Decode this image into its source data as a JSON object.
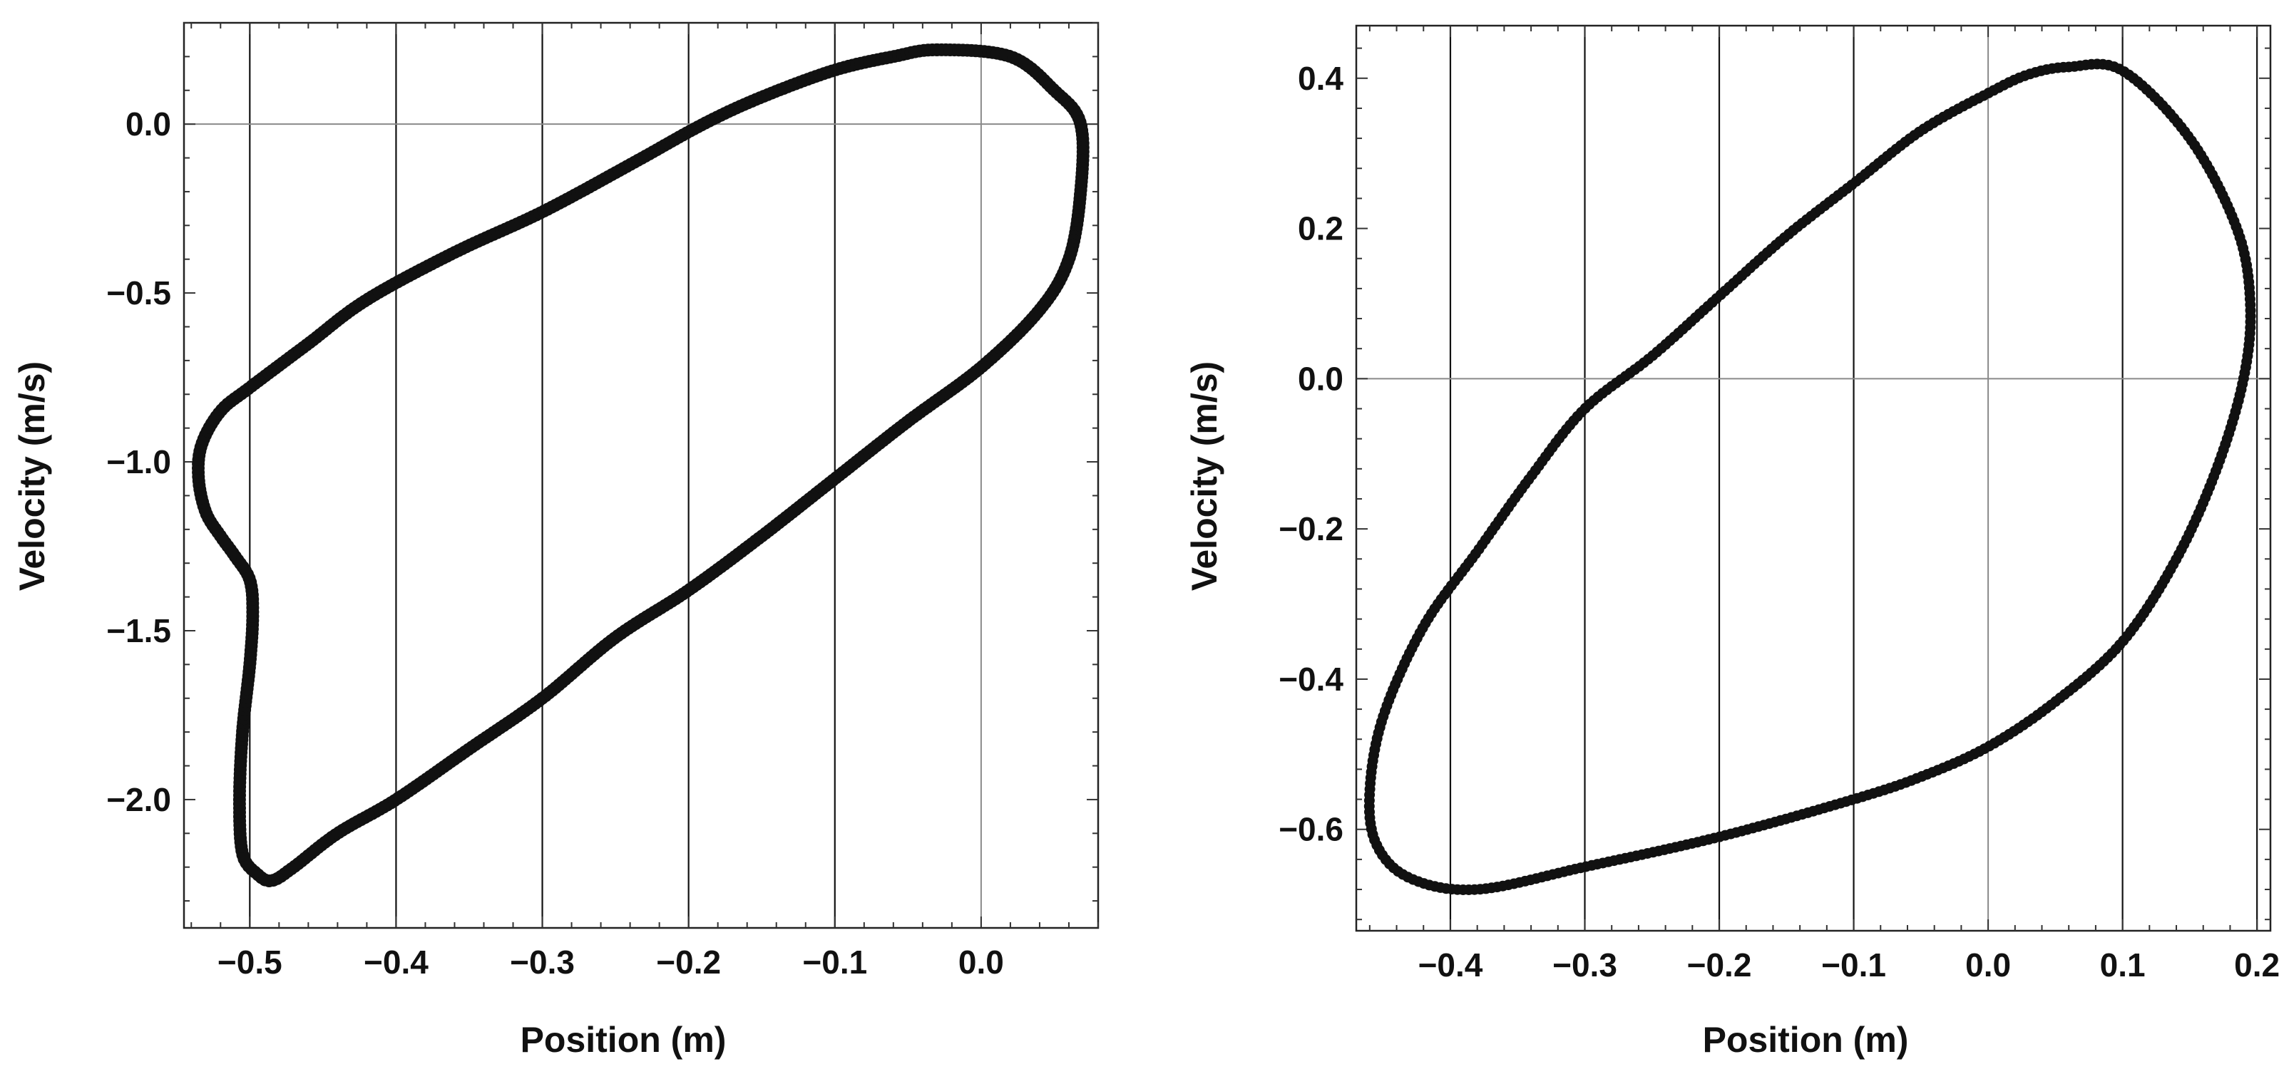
{
  "chart_data": [
    {
      "type": "scatter",
      "title": "",
      "xlabel": "Position (m)",
      "ylabel": "Velocity (m/s)",
      "xlim": [
        -0.545,
        0.08
      ],
      "ylim": [
        -2.38,
        0.3
      ],
      "xticks": [
        -0.5,
        -0.4,
        -0.3,
        -0.2,
        -0.1,
        0.0
      ],
      "xtick_labels": [
        "−0.5",
        "−0.4",
        "−0.3",
        "−0.2",
        "−0.1",
        "0.0"
      ],
      "yticks": [
        0.0,
        -0.5,
        -1.0,
        -1.5,
        -2.0
      ],
      "ytick_labels": [
        "0.0",
        "−0.5",
        "−1.0",
        "−1.5",
        "−2.0"
      ],
      "grid": "vertical",
      "marker_color": "#111111",
      "series": [
        {
          "closed": true,
          "x": [
            -0.03,
            0.02,
            0.05,
            0.068,
            0.068,
            0.06,
            0.04,
            0.0,
            -0.05,
            -0.1,
            -0.15,
            -0.2,
            -0.25,
            -0.3,
            -0.35,
            -0.4,
            -0.44,
            -0.47,
            -0.485,
            -0.495,
            -0.505,
            -0.507,
            -0.505,
            -0.5,
            -0.498,
            -0.5,
            -0.51,
            -0.52,
            -0.53,
            -0.535,
            -0.533,
            -0.52,
            -0.5,
            -0.46,
            -0.42,
            -0.36,
            -0.3,
            -0.24,
            -0.19,
            -0.15,
            -0.1,
            -0.06,
            -0.03
          ],
          "y": [
            0.22,
            0.2,
            0.1,
            0.0,
            -0.2,
            -0.4,
            -0.55,
            -0.72,
            -0.88,
            -1.05,
            -1.22,
            -1.38,
            -1.52,
            -1.7,
            -1.85,
            -2.0,
            -2.1,
            -2.2,
            -2.24,
            -2.22,
            -2.16,
            -2.0,
            -1.8,
            -1.6,
            -1.45,
            -1.35,
            -1.28,
            -1.22,
            -1.15,
            -1.05,
            -0.95,
            -0.85,
            -0.78,
            -0.65,
            -0.52,
            -0.38,
            -0.26,
            -0.12,
            0.0,
            0.08,
            0.16,
            0.2,
            0.22
          ]
        }
      ]
    },
    {
      "type": "scatter",
      "title": "",
      "xlabel": "Position (m)",
      "ylabel": "Velocity (m/s)",
      "xlim": [
        -0.47,
        0.21
      ],
      "ylim": [
        -0.735,
        0.47
      ],
      "xticks": [
        -0.4,
        -0.3,
        -0.2,
        -0.1,
        0.0,
        0.1,
        0.2
      ],
      "xtick_labels": [
        "−0.4",
        "−0.3",
        "−0.2",
        "−0.1",
        "0.0",
        "0.1",
        "0.2"
      ],
      "yticks": [
        0.4,
        0.2,
        0.0,
        -0.2,
        -0.4,
        -0.6
      ],
      "ytick_labels": [
        "0.4",
        "0.2",
        "0.0",
        "−0.2",
        "−0.4",
        "−0.6"
      ],
      "grid": "vertical",
      "marker_color": "#111111",
      "series": [
        {
          "closed": true,
          "x": [
            0.06,
            0.1,
            0.15,
            0.185,
            0.195,
            0.19,
            0.17,
            0.14,
            0.1,
            0.05,
            0.0,
            -0.05,
            -0.1,
            -0.2,
            -0.3,
            -0.38,
            -0.43,
            -0.455,
            -0.46,
            -0.45,
            -0.42,
            -0.38,
            -0.34,
            -0.3,
            -0.25,
            -0.2,
            -0.15,
            -0.1,
            -0.05,
            0.0,
            0.03,
            0.06
          ],
          "y": [
            0.415,
            0.41,
            0.32,
            0.2,
            0.1,
            0.0,
            -0.12,
            -0.24,
            -0.35,
            -0.43,
            -0.49,
            -0.53,
            -0.56,
            -0.61,
            -0.65,
            -0.68,
            -0.665,
            -0.62,
            -0.55,
            -0.45,
            -0.33,
            -0.23,
            -0.13,
            -0.04,
            0.03,
            0.11,
            0.19,
            0.26,
            0.33,
            0.38,
            0.405,
            0.415
          ]
        }
      ]
    }
  ]
}
